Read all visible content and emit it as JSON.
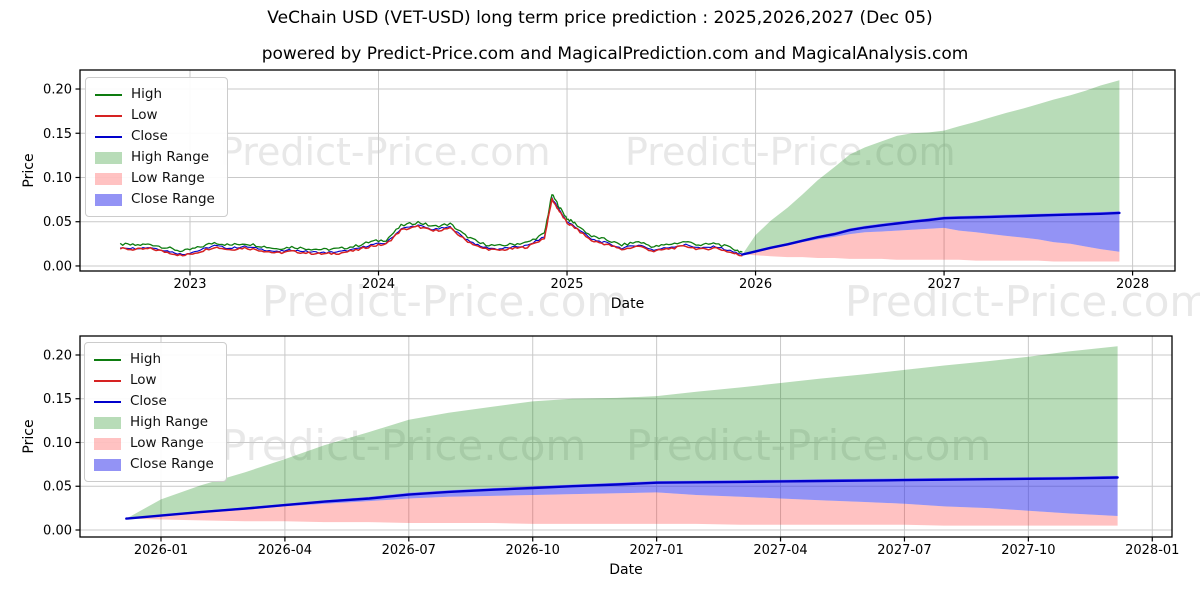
{
  "page": {
    "title": "VeChain USD (VET-USD) long term price prediction : 2025,2026,2027 (Dec 05)",
    "subtitle": "powered by Predict-Price.com and MagicalPrediction.com and MagicalAnalysis.com",
    "watermark": "Predict-Price.com",
    "background": "#ffffff"
  },
  "colors": {
    "high_line": "#0e7c10",
    "low_line": "#d62222",
    "close_line": "#0000cc",
    "high_fill": "rgba(0,128,0,0.28)",
    "low_fill": "rgba(255,30,30,0.27)",
    "close_fill": "rgba(40,40,235,0.5)",
    "grid": "#c9c9c9",
    "spine": "#000000",
    "watermark": "#e8e8e8"
  },
  "legend": {
    "items": [
      {
        "label": "High",
        "swatch": "line",
        "color_key": "high_line"
      },
      {
        "label": "Low",
        "swatch": "line",
        "color_key": "low_line"
      },
      {
        "label": "Close",
        "swatch": "line",
        "color_key": "close_line"
      },
      {
        "label": "High Range",
        "swatch": "patch",
        "color_key": "high_fill"
      },
      {
        "label": "Low Range",
        "swatch": "patch",
        "color_key": "low_fill"
      },
      {
        "label": "Close Range",
        "swatch": "patch",
        "color_key": "close_fill"
      }
    ]
  },
  "chart_data": {
    "type": "line",
    "title": "VeChain USD (VET-USD) long term price prediction : 2025,2026,2027 (Dec 05)",
    "charts": [
      {
        "name": "history-and-forecast",
        "xlabel": "Date",
        "ylabel": "Price",
        "xlim": [
          2022.4165,
          2028.225
        ],
        "ylim": [
          -0.0057,
          0.2215
        ],
        "show_history": true,
        "x_ticks": [
          {
            "t": 2023,
            "label": "2023"
          },
          {
            "t": 2024,
            "label": "2024"
          },
          {
            "t": 2025,
            "label": "2025"
          },
          {
            "t": 2026,
            "label": "2026"
          },
          {
            "t": 2027,
            "label": "2027"
          },
          {
            "t": 2028,
            "label": "2028"
          }
        ],
        "y_ticks": [
          {
            "v": 0.0,
            "label": "0.00"
          },
          {
            "v": 0.05,
            "label": "0.05"
          },
          {
            "v": 0.1,
            "label": "0.10"
          },
          {
            "v": 0.15,
            "label": "0.15"
          },
          {
            "v": 0.2,
            "label": "0.20"
          }
        ]
      },
      {
        "name": "forecast-detail",
        "xlabel": "Date",
        "ylabel": "Price",
        "xlim": [
          2025.8366,
          2028.0398
        ],
        "ylim": [
          -0.008,
          0.2217
        ],
        "show_history": false,
        "x_ticks": [
          {
            "t": 2026.0,
            "label": "2026-01"
          },
          {
            "t": 2026.25,
            "label": "2026-04"
          },
          {
            "t": 2026.5,
            "label": "2026-07"
          },
          {
            "t": 2026.75,
            "label": "2026-10"
          },
          {
            "t": 2027.0,
            "label": "2027-01"
          },
          {
            "t": 2027.25,
            "label": "2027-04"
          },
          {
            "t": 2027.5,
            "label": "2027-07"
          },
          {
            "t": 2027.75,
            "label": "2027-10"
          },
          {
            "t": 2028.0,
            "label": "2028-01"
          }
        ],
        "y_ticks": [
          {
            "v": 0.0,
            "label": "0.00"
          },
          {
            "v": 0.05,
            "label": "0.05"
          },
          {
            "v": 0.1,
            "label": "0.10"
          },
          {
            "v": 0.15,
            "label": "0.15"
          },
          {
            "v": 0.2,
            "label": "0.20"
          }
        ]
      }
    ],
    "history": {
      "x": [
        2022.63,
        2022.71,
        2022.79,
        2022.88,
        2022.96,
        2023.04,
        2023.13,
        2023.21,
        2023.29,
        2023.38,
        2023.46,
        2023.54,
        2023.63,
        2023.71,
        2023.79,
        2023.88,
        2023.96,
        2024.04,
        2024.12,
        2024.21,
        2024.29,
        2024.38,
        2024.46,
        2024.54,
        2024.63,
        2024.71,
        2024.79,
        2024.88,
        2024.92,
        2024.96,
        2025.0,
        2025.04,
        2025.13,
        2025.21,
        2025.29,
        2025.38,
        2025.46,
        2025.54,
        2025.63,
        2025.71,
        2025.79,
        2025.88,
        2025.93
      ],
      "high": [
        0.0245,
        0.0235,
        0.0245,
        0.0205,
        0.0165,
        0.0205,
        0.0265,
        0.0235,
        0.0255,
        0.0225,
        0.0195,
        0.0215,
        0.0195,
        0.0185,
        0.0195,
        0.0225,
        0.0275,
        0.0295,
        0.0455,
        0.0495,
        0.0445,
        0.0475,
        0.0345,
        0.0255,
        0.0225,
        0.0245,
        0.0265,
        0.0365,
        0.081,
        0.0665,
        0.0535,
        0.0485,
        0.0335,
        0.0295,
        0.0235,
        0.0275,
        0.0215,
        0.0245,
        0.0275,
        0.0235,
        0.0255,
        0.0195,
        0.0155
      ],
      "low": [
        0.0195,
        0.0185,
        0.0195,
        0.0155,
        0.0115,
        0.0155,
        0.0215,
        0.0185,
        0.0205,
        0.0175,
        0.0145,
        0.0165,
        0.0145,
        0.0135,
        0.0145,
        0.0175,
        0.0225,
        0.0245,
        0.0405,
        0.0445,
        0.0395,
        0.0425,
        0.0295,
        0.0205,
        0.0175,
        0.0195,
        0.0215,
        0.0315,
        0.0755,
        0.0615,
        0.0485,
        0.0435,
        0.0285,
        0.0245,
        0.0185,
        0.0225,
        0.0165,
        0.0195,
        0.0225,
        0.0185,
        0.0205,
        0.0145,
        0.0115
      ],
      "close": [
        0.021,
        0.02,
        0.021,
        0.017,
        0.013,
        0.017,
        0.023,
        0.02,
        0.022,
        0.019,
        0.016,
        0.018,
        0.016,
        0.015,
        0.016,
        0.019,
        0.024,
        0.026,
        0.042,
        0.046,
        0.041,
        0.044,
        0.031,
        0.022,
        0.019,
        0.021,
        0.023,
        0.033,
        0.077,
        0.063,
        0.05,
        0.045,
        0.03,
        0.026,
        0.02,
        0.024,
        0.018,
        0.021,
        0.024,
        0.02,
        0.022,
        0.016,
        0.013
      ]
    },
    "forecast": {
      "x": [
        2025.93,
        2026.0,
        2026.08,
        2026.17,
        2026.25,
        2026.33,
        2026.42,
        2026.5,
        2026.58,
        2026.67,
        2026.75,
        2026.83,
        2026.92,
        2027.0,
        2027.08,
        2027.17,
        2027.25,
        2027.33,
        2027.42,
        2027.5,
        2027.58,
        2027.67,
        2027.75,
        2027.83,
        2027.93
      ],
      "close": [
        0.013,
        0.0165,
        0.0205,
        0.0245,
        0.0285,
        0.0325,
        0.036,
        0.0405,
        0.0435,
        0.046,
        0.048,
        0.05,
        0.052,
        0.054,
        0.0545,
        0.055,
        0.0555,
        0.056,
        0.0565,
        0.057,
        0.0575,
        0.058,
        0.0585,
        0.059,
        0.06
      ],
      "high_upper": [
        0.013,
        0.035,
        0.051,
        0.066,
        0.081,
        0.097,
        0.112,
        0.126,
        0.134,
        0.141,
        0.147,
        0.15,
        0.151,
        0.153,
        0.158,
        0.163,
        0.168,
        0.173,
        0.178,
        0.183,
        0.188,
        0.193,
        0.198,
        0.204,
        0.21
      ],
      "close_upper": [
        0.013,
        0.018,
        0.022,
        0.026,
        0.03,
        0.034,
        0.038,
        0.0425,
        0.0455,
        0.048,
        0.05,
        0.052,
        0.054,
        0.056,
        0.0565,
        0.057,
        0.0575,
        0.058,
        0.0585,
        0.059,
        0.0595,
        0.06,
        0.0605,
        0.061,
        0.062
      ],
      "close_lower": [
        0.013,
        0.016,
        0.0195,
        0.023,
        0.027,
        0.03,
        0.033,
        0.036,
        0.038,
        0.039,
        0.04,
        0.041,
        0.042,
        0.043,
        0.04,
        0.038,
        0.036,
        0.034,
        0.032,
        0.03,
        0.027,
        0.025,
        0.022,
        0.019,
        0.016
      ],
      "low_upper": [
        0.013,
        0.016,
        0.0195,
        0.023,
        0.027,
        0.03,
        0.033,
        0.036,
        0.038,
        0.039,
        0.04,
        0.041,
        0.042,
        0.043,
        0.04,
        0.038,
        0.036,
        0.034,
        0.032,
        0.03,
        0.027,
        0.025,
        0.022,
        0.019,
        0.016
      ],
      "low_lower": [
        0.013,
        0.012,
        0.011,
        0.01,
        0.01,
        0.009,
        0.009,
        0.008,
        0.008,
        0.008,
        0.007,
        0.007,
        0.007,
        0.007,
        0.007,
        0.006,
        0.006,
        0.006,
        0.006,
        0.006,
        0.005,
        0.005,
        0.005,
        0.005,
        0.005
      ]
    }
  }
}
